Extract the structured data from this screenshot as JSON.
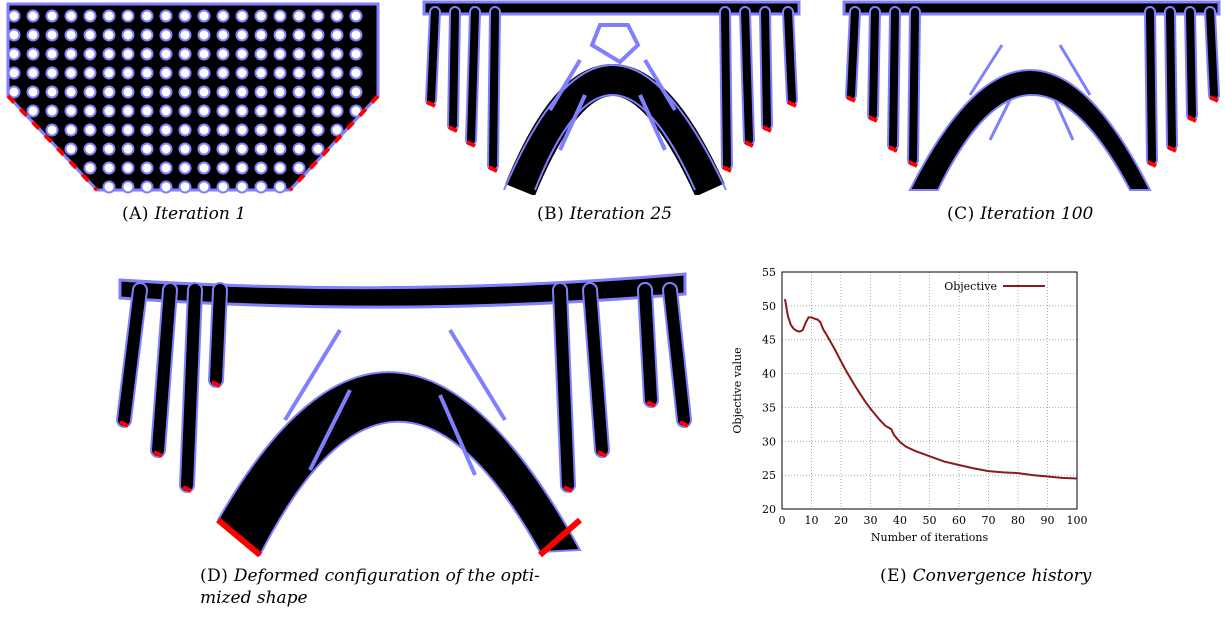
{
  "panels": {
    "a": {
      "label": "(A)",
      "title": "Iteration 1"
    },
    "b": {
      "label": "(B)",
      "title": "Iteration 25"
    },
    "c": {
      "label": "(C)",
      "title": "Iteration 100"
    },
    "d": {
      "label": "(D)",
      "title_line1": "Deformed configuration of the opti-",
      "title_line2": "mized shape"
    },
    "e": {
      "label": "(E)",
      "title": "Convergence history"
    }
  },
  "colors": {
    "material": "#000000",
    "boundary": "#8080ff",
    "support": "#ff0000",
    "curve": "#8b1a1a"
  },
  "chart_data": {
    "type": "line",
    "xlabel": "Number of iterations",
    "ylabel": "Objective value",
    "xlim": [
      0,
      100
    ],
    "ylim": [
      20,
      55
    ],
    "xticks": [
      "0",
      "10",
      "20",
      "30",
      "40",
      "50",
      "60",
      "70",
      "80",
      "90",
      "100"
    ],
    "yticks": [
      "20",
      "25",
      "30",
      "35",
      "40",
      "45",
      "50",
      "55"
    ],
    "grid": true,
    "legend": "top-right",
    "series": [
      {
        "name": "Objective",
        "x": [
          1,
          2,
          3,
          4,
          5,
          6,
          7,
          8,
          9,
          10,
          11,
          12,
          13,
          14,
          15,
          18,
          20,
          22,
          25,
          28,
          30,
          33,
          35,
          37,
          38,
          40,
          42,
          45,
          50,
          55,
          60,
          65,
          70,
          75,
          80,
          85,
          90,
          95,
          100
        ],
        "y": [
          51,
          48.5,
          47.2,
          46.6,
          46.3,
          46.2,
          46.4,
          47.5,
          48.3,
          48.3,
          48.1,
          48.0,
          47.6,
          46.5,
          45.8,
          43.5,
          41.8,
          40.2,
          38,
          36,
          34.8,
          33.2,
          32.3,
          31.8,
          30.9,
          29.9,
          29.2,
          28.6,
          27.8,
          27.0,
          26.5,
          26.0,
          25.6,
          25.4,
          25.3,
          25.0,
          24.8,
          24.6,
          24.5
        ]
      }
    ]
  }
}
